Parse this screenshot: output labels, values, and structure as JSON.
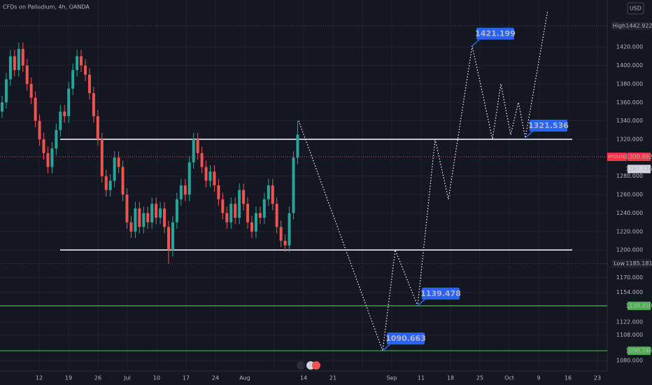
{
  "header": {
    "title": "CFDs on Palladium, 4h, OANDA",
    "currency": "USD"
  },
  "chart_data": {
    "type": "candlestick",
    "up_color": "#26a69a",
    "down_color": "#ef5350",
    "open": [
      1350,
      1360,
      1385,
      1410,
      1395,
      1418,
      1400,
      1380,
      1365,
      1340,
      1320,
      1305,
      1290,
      1310,
      1330,
      1350,
      1345,
      1375,
      1395,
      1410,
      1400,
      1390,
      1370,
      1345,
      1320,
      1280,
      1265,
      1275,
      1300,
      1290,
      1260,
      1230,
      1220,
      1245,
      1225,
      1240,
      1230,
      1250,
      1235,
      1245,
      1225,
      1200,
      1230,
      1255,
      1270,
      1260,
      1295,
      1320,
      1305,
      1290,
      1275,
      1285,
      1270,
      1255,
      1240,
      1230,
      1250,
      1235,
      1265,
      1250,
      1230,
      1220,
      1240,
      1235,
      1255,
      1270,
      1250,
      1225,
      1210,
      1205,
      1240,
      1300
    ],
    "high": [
      1367,
      1392,
      1417,
      1417,
      1425,
      1425,
      1407,
      1387,
      1372,
      1347,
      1327,
      1312,
      1317,
      1337,
      1357,
      1357,
      1382,
      1402,
      1417,
      1417,
      1407,
      1397,
      1377,
      1352,
      1327,
      1287,
      1282,
      1307,
      1307,
      1297,
      1267,
      1237,
      1252,
      1252,
      1247,
      1247,
      1257,
      1257,
      1252,
      1252,
      1232,
      1237,
      1262,
      1277,
      1277,
      1302,
      1327,
      1327,
      1312,
      1297,
      1292,
      1292,
      1277,
      1262,
      1247,
      1257,
      1257,
      1272,
      1272,
      1257,
      1237,
      1247,
      1247,
      1262,
      1277,
      1277,
      1257,
      1232,
      1217,
      1247,
      1307,
      1340
    ],
    "low": [
      1343,
      1353,
      1378,
      1388,
      1388,
      1393,
      1373,
      1358,
      1333,
      1313,
      1298,
      1283,
      1283,
      1303,
      1323,
      1338,
      1338,
      1368,
      1388,
      1393,
      1383,
      1363,
      1338,
      1313,
      1273,
      1258,
      1258,
      1268,
      1283,
      1253,
      1223,
      1213,
      1213,
      1218,
      1218,
      1223,
      1223,
      1228,
      1228,
      1218,
      1185,
      1193,
      1223,
      1248,
      1253,
      1253,
      1288,
      1298,
      1283,
      1268,
      1268,
      1263,
      1248,
      1233,
      1223,
      1223,
      1228,
      1228,
      1243,
      1223,
      1213,
      1213,
      1228,
      1228,
      1248,
      1243,
      1218,
      1203,
      1198,
      1198,
      1233,
      1293
    ],
    "close": [
      1360,
      1385,
      1410,
      1395,
      1418,
      1400,
      1380,
      1365,
      1340,
      1320,
      1305,
      1290,
      1310,
      1330,
      1350,
      1345,
      1375,
      1395,
      1410,
      1400,
      1390,
      1370,
      1345,
      1320,
      1280,
      1265,
      1275,
      1300,
      1290,
      1260,
      1230,
      1220,
      1245,
      1225,
      1240,
      1230,
      1250,
      1235,
      1245,
      1225,
      1200,
      1230,
      1255,
      1270,
      1260,
      1295,
      1320,
      1305,
      1290,
      1275,
      1285,
      1270,
      1255,
      1240,
      1230,
      1250,
      1235,
      1265,
      1250,
      1230,
      1220,
      1240,
      1235,
      1255,
      1270,
      1250,
      1225,
      1210,
      1205,
      1240,
      1300,
      1325
    ],
    "ylim": [
      1065,
      1471
    ],
    "yticks": [
      {
        "value": 1420,
        "label": "1420.000"
      },
      {
        "value": 1400,
        "label": "1400.000"
      },
      {
        "value": 1380,
        "label": "1380.000"
      },
      {
        "value": 1360,
        "label": "1360.000"
      },
      {
        "value": 1340,
        "label": "1340.000"
      },
      {
        "value": 1320,
        "label": "1320.000"
      },
      {
        "value": 1280,
        "label": "1280.000"
      },
      {
        "value": 1260,
        "label": "1260.000"
      },
      {
        "value": 1240,
        "label": "1240.000"
      },
      {
        "value": 1220,
        "label": "1220.000"
      },
      {
        "value": 1200,
        "label": "1200.000"
      },
      {
        "value": 1170,
        "label": "1170.000"
      },
      {
        "value": 1154,
        "label": "1154.000"
      },
      {
        "value": 1122,
        "label": "1122.000"
      },
      {
        "value": 1108,
        "label": "1108.000"
      },
      {
        "value": 1080,
        "label": "1080.000"
      }
    ],
    "categories": [
      "12",
      "19",
      "26",
      "Jul",
      "10",
      "17",
      "24",
      "Aug",
      null,
      "14",
      "21",
      null,
      "Sep",
      "11",
      "18",
      "25",
      "Oct",
      "9",
      "16",
      "23"
    ],
    "channel": [
      1320,
      1200
    ],
    "channel_color": "#ffffff",
    "markers": [
      {
        "name": "High",
        "value": 1442.922
      },
      {
        "name": "Low",
        "value": 1185.181
      }
    ],
    "last_price": {
      "name": "XPDUSD",
      "value": 1300.992,
      "color": "#f23645"
    },
    "prev_price": 1287.776,
    "levels": [
      {
        "value": 1139.45,
        "label": "1139.450"
      },
      {
        "value": 1090.746,
        "label": "1090.746"
      }
    ],
    "level_color": "#4caf50",
    "projection": {
      "color": "#2962ff",
      "values": [
        1340,
        1090.663,
        1200,
        1139.478,
        1320,
        1255,
        1421.199,
        1320,
        1380,
        1325,
        1360,
        1321.536,
        1460
      ],
      "value_labels": [
        null,
        "1090.663",
        null,
        "1139.478",
        null,
        null,
        "1421.199",
        null,
        null,
        null,
        null,
        "1321.536",
        null
      ]
    }
  }
}
